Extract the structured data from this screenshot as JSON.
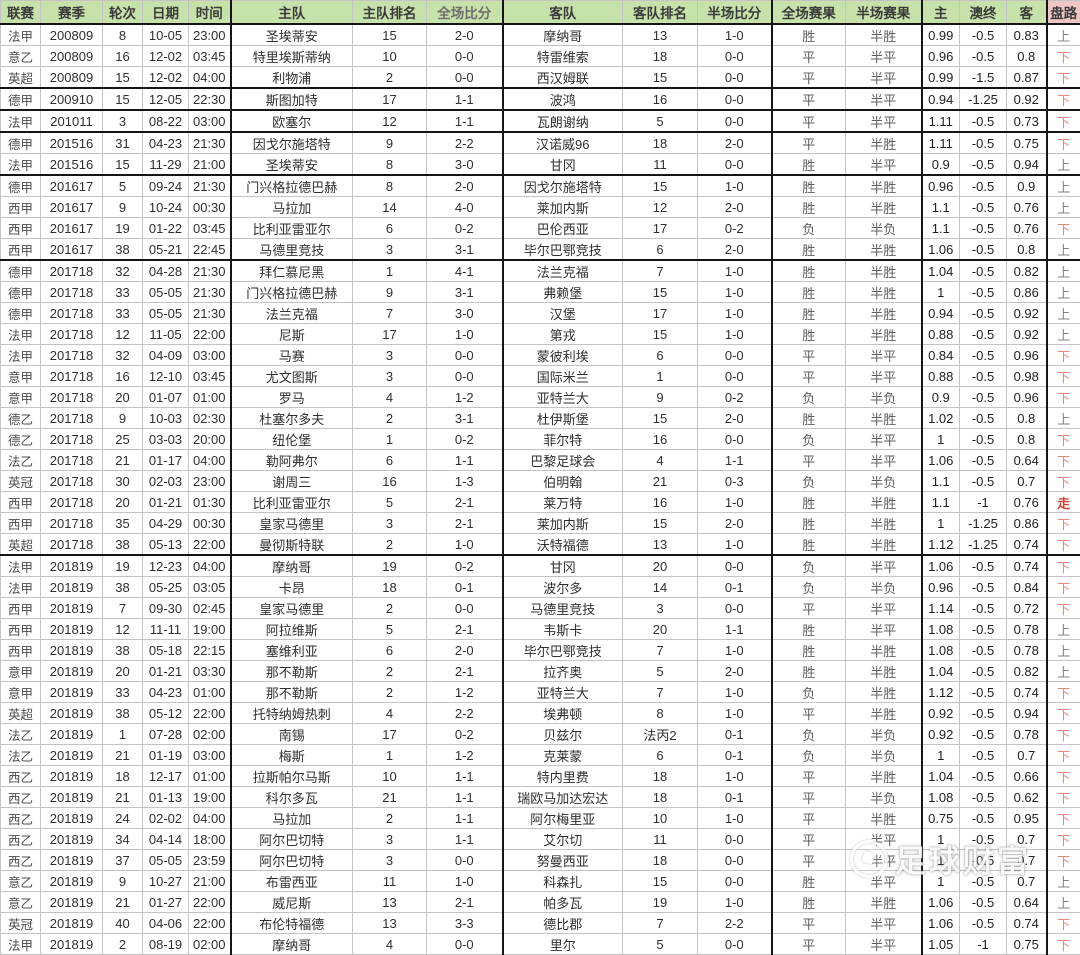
{
  "table": {
    "headers": [
      "联赛",
      "赛季",
      "轮次",
      "日期",
      "时间",
      "主队",
      "主队排名",
      "全场比分",
      "客队",
      "客队排名",
      "半场比分",
      "全场赛果",
      "半场赛果",
      "主",
      "澳终",
      "客",
      "盘路"
    ],
    "rows": [
      {
        "lg": "法甲",
        "ss": "200809",
        "rd": "8",
        "dt": "10-05",
        "tm": "23:00",
        "home": "圣埃蒂安",
        "hr": "15",
        "fts": "2-0",
        "away": "摩纳哥",
        "ar": "13",
        "hts": "1-0",
        "ftr": "胜",
        "htr": "半胜",
        "o1": "0.99",
        "ao": "-0.5",
        "o2": "0.83",
        "tr": "上"
      },
      {
        "lg": "意乙",
        "ss": "200809",
        "rd": "16",
        "dt": "12-02",
        "tm": "03:45",
        "home": "特里埃斯蒂纳",
        "hr": "10",
        "fts": "0-0",
        "away": "特雷维索",
        "ar": "18",
        "hts": "0-0",
        "ftr": "平",
        "htr": "半平",
        "o1": "0.96",
        "ao": "-0.5",
        "o2": "0.8",
        "tr": "下"
      },
      {
        "lg": "英超",
        "ss": "200809",
        "rd": "15",
        "dt": "12-02",
        "tm": "04:00",
        "home": "利物浦",
        "hr": "2",
        "fts": "0-0",
        "away": "西汉姆联",
        "ar": "15",
        "hts": "0-0",
        "ftr": "平",
        "htr": "半平",
        "o1": "0.99",
        "ao": "-1.5",
        "o2": "0.87",
        "tr": "下",
        "brk": true
      },
      {
        "lg": "德甲",
        "ss": "200910",
        "rd": "15",
        "dt": "12-05",
        "tm": "22:30",
        "home": "斯图加特",
        "hr": "17",
        "fts": "1-1",
        "away": "波鸿",
        "ar": "16",
        "hts": "0-0",
        "ftr": "平",
        "htr": "半平",
        "o1": "0.94",
        "ao": "-1.25",
        "o2": "0.92",
        "tr": "下",
        "brk": true
      },
      {
        "lg": "法甲",
        "ss": "201011",
        "rd": "3",
        "dt": "08-22",
        "tm": "03:00",
        "home": "欧塞尔",
        "hr": "12",
        "fts": "1-1",
        "away": "瓦朗谢纳",
        "ar": "5",
        "hts": "0-0",
        "ftr": "平",
        "htr": "半平",
        "o1": "1.11",
        "ao": "-0.5",
        "o2": "0.73",
        "tr": "下",
        "brk": true
      },
      {
        "lg": "德甲",
        "ss": "201516",
        "rd": "31",
        "dt": "04-23",
        "tm": "21:30",
        "home": "因戈尔施塔特",
        "hr": "9",
        "fts": "2-2",
        "away": "汉诺威96",
        "ar": "18",
        "hts": "2-0",
        "ftr": "平",
        "htr": "半胜",
        "o1": "1.11",
        "ao": "-0.5",
        "o2": "0.75",
        "tr": "下"
      },
      {
        "lg": "法甲",
        "ss": "201516",
        "rd": "15",
        "dt": "11-29",
        "tm": "21:00",
        "home": "圣埃蒂安",
        "hr": "8",
        "fts": "3-0",
        "away": "甘冈",
        "ar": "11",
        "hts": "0-0",
        "ftr": "胜",
        "htr": "半平",
        "o1": "0.9",
        "ao": "-0.5",
        "o2": "0.94",
        "tr": "上",
        "brk": true
      },
      {
        "lg": "德甲",
        "ss": "201617",
        "rd": "5",
        "dt": "09-24",
        "tm": "21:30",
        "home": "门兴格拉德巴赫",
        "hr": "8",
        "fts": "2-0",
        "away": "因戈尔施塔特",
        "ar": "15",
        "hts": "1-0",
        "ftr": "胜",
        "htr": "半胜",
        "o1": "0.96",
        "ao": "-0.5",
        "o2": "0.9",
        "tr": "上"
      },
      {
        "lg": "西甲",
        "ss": "201617",
        "rd": "9",
        "dt": "10-24",
        "tm": "00:30",
        "home": "马拉加",
        "hr": "14",
        "fts": "4-0",
        "away": "莱加内斯",
        "ar": "12",
        "hts": "2-0",
        "ftr": "胜",
        "htr": "半胜",
        "o1": "1.1",
        "ao": "-0.5",
        "o2": "0.76",
        "tr": "上"
      },
      {
        "lg": "西甲",
        "ss": "201617",
        "rd": "19",
        "dt": "01-22",
        "tm": "03:45",
        "home": "比利亚雷亚尔",
        "hr": "6",
        "fts": "0-2",
        "away": "巴伦西亚",
        "ar": "17",
        "hts": "0-2",
        "ftr": "负",
        "htr": "半负",
        "o1": "1.1",
        "ao": "-0.5",
        "o2": "0.76",
        "tr": "下"
      },
      {
        "lg": "西甲",
        "ss": "201617",
        "rd": "38",
        "dt": "05-21",
        "tm": "22:45",
        "home": "马德里竞技",
        "hr": "3",
        "fts": "3-1",
        "away": "毕尔巴鄂竞技",
        "ar": "6",
        "hts": "2-0",
        "ftr": "胜",
        "htr": "半胜",
        "o1": "1.06",
        "ao": "-0.5",
        "o2": "0.8",
        "tr": "上",
        "brk": true
      },
      {
        "lg": "德甲",
        "ss": "201718",
        "rd": "32",
        "dt": "04-28",
        "tm": "21:30",
        "home": "拜仁慕尼黑",
        "hr": "1",
        "fts": "4-1",
        "away": "法兰克福",
        "ar": "7",
        "hts": "1-0",
        "ftr": "胜",
        "htr": "半胜",
        "o1": "1.04",
        "ao": "-0.5",
        "o2": "0.82",
        "tr": "上"
      },
      {
        "lg": "德甲",
        "ss": "201718",
        "rd": "33",
        "dt": "05-05",
        "tm": "21:30",
        "home": "门兴格拉德巴赫",
        "hr": "9",
        "fts": "3-1",
        "away": "弗赖堡",
        "ar": "15",
        "hts": "1-0",
        "ftr": "胜",
        "htr": "半胜",
        "o1": "1",
        "ao": "-0.5",
        "o2": "0.86",
        "tr": "上"
      },
      {
        "lg": "德甲",
        "ss": "201718",
        "rd": "33",
        "dt": "05-05",
        "tm": "21:30",
        "home": "法兰克福",
        "hr": "7",
        "fts": "3-0",
        "away": "汉堡",
        "ar": "17",
        "hts": "1-0",
        "ftr": "胜",
        "htr": "半胜",
        "o1": "0.94",
        "ao": "-0.5",
        "o2": "0.92",
        "tr": "上"
      },
      {
        "lg": "法甲",
        "ss": "201718",
        "rd": "12",
        "dt": "11-05",
        "tm": "22:00",
        "home": "尼斯",
        "hr": "17",
        "fts": "1-0",
        "away": "第戎",
        "ar": "15",
        "hts": "1-0",
        "ftr": "胜",
        "htr": "半胜",
        "o1": "0.88",
        "ao": "-0.5",
        "o2": "0.92",
        "tr": "上"
      },
      {
        "lg": "法甲",
        "ss": "201718",
        "rd": "32",
        "dt": "04-09",
        "tm": "03:00",
        "home": "马赛",
        "hr": "3",
        "fts": "0-0",
        "away": "蒙彼利埃",
        "ar": "6",
        "hts": "0-0",
        "ftr": "平",
        "htr": "半平",
        "o1": "0.84",
        "ao": "-0.5",
        "o2": "0.96",
        "tr": "下"
      },
      {
        "lg": "意甲",
        "ss": "201718",
        "rd": "16",
        "dt": "12-10",
        "tm": "03:45",
        "home": "尤文图斯",
        "hr": "3",
        "fts": "0-0",
        "away": "国际米兰",
        "ar": "1",
        "hts": "0-0",
        "ftr": "平",
        "htr": "半平",
        "o1": "0.88",
        "ao": "-0.5",
        "o2": "0.98",
        "tr": "下"
      },
      {
        "lg": "意甲",
        "ss": "201718",
        "rd": "20",
        "dt": "01-07",
        "tm": "01:00",
        "home": "罗马",
        "hr": "4",
        "fts": "1-2",
        "away": "亚特兰大",
        "ar": "9",
        "hts": "0-2",
        "ftr": "负",
        "htr": "半负",
        "o1": "0.9",
        "ao": "-0.5",
        "o2": "0.96",
        "tr": "下"
      },
      {
        "lg": "德乙",
        "ss": "201718",
        "rd": "9",
        "dt": "10-03",
        "tm": "02:30",
        "home": "杜塞尔多夫",
        "hr": "2",
        "fts": "3-1",
        "away": "杜伊斯堡",
        "ar": "15",
        "hts": "2-0",
        "ftr": "胜",
        "htr": "半胜",
        "o1": "1.02",
        "ao": "-0.5",
        "o2": "0.8",
        "tr": "上"
      },
      {
        "lg": "德乙",
        "ss": "201718",
        "rd": "25",
        "dt": "03-03",
        "tm": "20:00",
        "home": "纽伦堡",
        "hr": "1",
        "fts": "0-2",
        "away": "菲尔特",
        "ar": "16",
        "hts": "0-0",
        "ftr": "负",
        "htr": "半平",
        "o1": "1",
        "ao": "-0.5",
        "o2": "0.8",
        "tr": "下"
      },
      {
        "lg": "法乙",
        "ss": "201718",
        "rd": "21",
        "dt": "01-17",
        "tm": "04:00",
        "home": "勒阿弗尔",
        "hr": "6",
        "fts": "1-1",
        "away": "巴黎足球会",
        "ar": "4",
        "hts": "1-1",
        "ftr": "平",
        "htr": "半平",
        "o1": "1.06",
        "ao": "-0.5",
        "o2": "0.64",
        "tr": "下"
      },
      {
        "lg": "英冠",
        "ss": "201718",
        "rd": "30",
        "dt": "02-03",
        "tm": "23:00",
        "home": "谢周三",
        "hr": "16",
        "fts": "1-3",
        "away": "伯明翰",
        "ar": "21",
        "hts": "0-3",
        "ftr": "负",
        "htr": "半负",
        "o1": "1.1",
        "ao": "-0.5",
        "o2": "0.7",
        "tr": "下"
      },
      {
        "lg": "西甲",
        "ss": "201718",
        "rd": "20",
        "dt": "01-21",
        "tm": "01:30",
        "home": "比利亚雷亚尔",
        "hr": "5",
        "fts": "2-1",
        "away": "莱万特",
        "ar": "16",
        "hts": "1-0",
        "ftr": "胜",
        "htr": "半胜",
        "o1": "1.1",
        "ao": "-1",
        "o2": "0.76",
        "tr": "走"
      },
      {
        "lg": "西甲",
        "ss": "201718",
        "rd": "35",
        "dt": "04-29",
        "tm": "00:30",
        "home": "皇家马德里",
        "hr": "3",
        "fts": "2-1",
        "away": "莱加内斯",
        "ar": "15",
        "hts": "2-0",
        "ftr": "胜",
        "htr": "半胜",
        "o1": "1",
        "ao": "-1.25",
        "o2": "0.86",
        "tr": "下"
      },
      {
        "lg": "英超",
        "ss": "201718",
        "rd": "38",
        "dt": "05-13",
        "tm": "22:00",
        "home": "曼彻斯特联",
        "hr": "2",
        "fts": "1-0",
        "away": "沃特福德",
        "ar": "13",
        "hts": "1-0",
        "ftr": "胜",
        "htr": "半胜",
        "o1": "1.12",
        "ao": "-1.25",
        "o2": "0.74",
        "tr": "下",
        "brk": true
      },
      {
        "lg": "法甲",
        "ss": "201819",
        "rd": "19",
        "dt": "12-23",
        "tm": "04:00",
        "home": "摩纳哥",
        "hr": "19",
        "fts": "0-2",
        "away": "甘冈",
        "ar": "20",
        "hts": "0-0",
        "ftr": "负",
        "htr": "半平",
        "o1": "1.06",
        "ao": "-0.5",
        "o2": "0.74",
        "tr": "下"
      },
      {
        "lg": "法甲",
        "ss": "201819",
        "rd": "38",
        "dt": "05-25",
        "tm": "03:05",
        "home": "卡昂",
        "hr": "18",
        "fts": "0-1",
        "away": "波尔多",
        "ar": "14",
        "hts": "0-1",
        "ftr": "负",
        "htr": "半负",
        "o1": "0.96",
        "ao": "-0.5",
        "o2": "0.84",
        "tr": "下"
      },
      {
        "lg": "西甲",
        "ss": "201819",
        "rd": "7",
        "dt": "09-30",
        "tm": "02:45",
        "home": "皇家马德里",
        "hr": "2",
        "fts": "0-0",
        "away": "马德里竞技",
        "ar": "3",
        "hts": "0-0",
        "ftr": "平",
        "htr": "半平",
        "o1": "1.14",
        "ao": "-0.5",
        "o2": "0.72",
        "tr": "下"
      },
      {
        "lg": "西甲",
        "ss": "201819",
        "rd": "12",
        "dt": "11-11",
        "tm": "19:00",
        "home": "阿拉维斯",
        "hr": "5",
        "fts": "2-1",
        "away": "韦斯卡",
        "ar": "20",
        "hts": "1-1",
        "ftr": "胜",
        "htr": "半平",
        "o1": "1.08",
        "ao": "-0.5",
        "o2": "0.78",
        "tr": "上"
      },
      {
        "lg": "西甲",
        "ss": "201819",
        "rd": "38",
        "dt": "05-18",
        "tm": "22:15",
        "home": "塞维利亚",
        "hr": "6",
        "fts": "2-0",
        "away": "毕尔巴鄂竞技",
        "ar": "7",
        "hts": "1-0",
        "ftr": "胜",
        "htr": "半胜",
        "o1": "1.08",
        "ao": "-0.5",
        "o2": "0.78",
        "tr": "上"
      },
      {
        "lg": "意甲",
        "ss": "201819",
        "rd": "20",
        "dt": "01-21",
        "tm": "03:30",
        "home": "那不勒斯",
        "hr": "2",
        "fts": "2-1",
        "away": "拉齐奥",
        "ar": "5",
        "hts": "2-0",
        "ftr": "胜",
        "htr": "半胜",
        "o1": "1.04",
        "ao": "-0.5",
        "o2": "0.82",
        "tr": "上"
      },
      {
        "lg": "意甲",
        "ss": "201819",
        "rd": "33",
        "dt": "04-23",
        "tm": "01:00",
        "home": "那不勒斯",
        "hr": "2",
        "fts": "1-2",
        "away": "亚特兰大",
        "ar": "7",
        "hts": "1-0",
        "ftr": "负",
        "htr": "半胜",
        "o1": "1.12",
        "ao": "-0.5",
        "o2": "0.74",
        "tr": "下"
      },
      {
        "lg": "英超",
        "ss": "201819",
        "rd": "38",
        "dt": "05-12",
        "tm": "22:00",
        "home": "托特纳姆热刺",
        "hr": "4",
        "fts": "2-2",
        "away": "埃弗顿",
        "ar": "8",
        "hts": "1-0",
        "ftr": "平",
        "htr": "半胜",
        "o1": "0.92",
        "ao": "-0.5",
        "o2": "0.94",
        "tr": "下"
      },
      {
        "lg": "法乙",
        "ss": "201819",
        "rd": "1",
        "dt": "07-28",
        "tm": "02:00",
        "home": "南锡",
        "hr": "17",
        "fts": "0-2",
        "away": "贝兹尔",
        "ar": "法丙2",
        "hts": "0-1",
        "ftr": "负",
        "htr": "半负",
        "o1": "0.92",
        "ao": "-0.5",
        "o2": "0.78",
        "tr": "下"
      },
      {
        "lg": "法乙",
        "ss": "201819",
        "rd": "21",
        "dt": "01-19",
        "tm": "03:00",
        "home": "梅斯",
        "hr": "1",
        "fts": "1-2",
        "away": "克莱蒙",
        "ar": "6",
        "hts": "0-1",
        "ftr": "负",
        "htr": "半负",
        "o1": "1",
        "ao": "-0.5",
        "o2": "0.7",
        "tr": "下"
      },
      {
        "lg": "西乙",
        "ss": "201819",
        "rd": "18",
        "dt": "12-17",
        "tm": "01:00",
        "home": "拉斯帕尔马斯",
        "hr": "10",
        "fts": "1-1",
        "away": "特内里费",
        "ar": "18",
        "hts": "1-0",
        "ftr": "平",
        "htr": "半胜",
        "o1": "1.04",
        "ao": "-0.5",
        "o2": "0.66",
        "tr": "下"
      },
      {
        "lg": "西乙",
        "ss": "201819",
        "rd": "21",
        "dt": "01-13",
        "tm": "19:00",
        "home": "科尔多瓦",
        "hr": "21",
        "fts": "1-1",
        "away": "瑞欧马加达宏达",
        "ar": "18",
        "hts": "0-1",
        "ftr": "平",
        "htr": "半负",
        "o1": "1.08",
        "ao": "-0.5",
        "o2": "0.62",
        "tr": "下"
      },
      {
        "lg": "西乙",
        "ss": "201819",
        "rd": "24",
        "dt": "02-02",
        "tm": "04:00",
        "home": "马拉加",
        "hr": "2",
        "fts": "1-1",
        "away": "阿尔梅里亚",
        "ar": "10",
        "hts": "1-0",
        "ftr": "平",
        "htr": "半胜",
        "o1": "0.75",
        "ao": "-0.5",
        "o2": "0.95",
        "tr": "下"
      },
      {
        "lg": "西乙",
        "ss": "201819",
        "rd": "34",
        "dt": "04-14",
        "tm": "18:00",
        "home": "阿尔巴切特",
        "hr": "3",
        "fts": "1-1",
        "away": "艾尔切",
        "ar": "11",
        "hts": "0-0",
        "ftr": "平",
        "htr": "半平",
        "o1": "1",
        "ao": "-0.5",
        "o2": "0.7",
        "tr": "下"
      },
      {
        "lg": "西乙",
        "ss": "201819",
        "rd": "37",
        "dt": "05-05",
        "tm": "23:59",
        "home": "阿尔巴切特",
        "hr": "3",
        "fts": "0-0",
        "away": "努曼西亚",
        "ar": "18",
        "hts": "0-0",
        "ftr": "平",
        "htr": "半平",
        "o1": "1",
        "ao": "-0.5",
        "o2": "0.7",
        "tr": "下"
      },
      {
        "lg": "意乙",
        "ss": "201819",
        "rd": "9",
        "dt": "10-27",
        "tm": "21:00",
        "home": "布雷西亚",
        "hr": "11",
        "fts": "1-0",
        "away": "科森扎",
        "ar": "15",
        "hts": "0-0",
        "ftr": "胜",
        "htr": "半平",
        "o1": "1",
        "ao": "-0.5",
        "o2": "0.7",
        "tr": "上"
      },
      {
        "lg": "意乙",
        "ss": "201819",
        "rd": "21",
        "dt": "01-27",
        "tm": "22:00",
        "home": "威尼斯",
        "hr": "13",
        "fts": "2-1",
        "away": "帕多瓦",
        "ar": "19",
        "hts": "1-0",
        "ftr": "胜",
        "htr": "半胜",
        "o1": "1.06",
        "ao": "-0.5",
        "o2": "0.64",
        "tr": "上"
      },
      {
        "lg": "英冠",
        "ss": "201819",
        "rd": "40",
        "dt": "04-06",
        "tm": "22:00",
        "home": "布伦特福德",
        "hr": "13",
        "fts": "3-3",
        "away": "德比郡",
        "ar": "7",
        "hts": "2-2",
        "ftr": "平",
        "htr": "半平",
        "o1": "1.06",
        "ao": "-0.5",
        "o2": "0.74",
        "tr": "下"
      },
      {
        "lg": "法甲",
        "ss": "201819",
        "rd": "2",
        "dt": "08-19",
        "tm": "02:00",
        "home": "摩纳哥",
        "hr": "4",
        "fts": "0-0",
        "away": "里尔",
        "ar": "5",
        "hts": "0-0",
        "ftr": "平",
        "htr": "半平",
        "o1": "1.05",
        "ao": "-1",
        "o2": "0.75",
        "tr": "下"
      }
    ]
  },
  "colors": {
    "header_bg": "#c7e1aa",
    "trend_header_bg": "#eec4c4",
    "trend_up": "#85847a",
    "trend_down": "#e5897e",
    "trend_push": "#ce4537"
  },
  "watermark": {
    "text": "足球财富"
  }
}
